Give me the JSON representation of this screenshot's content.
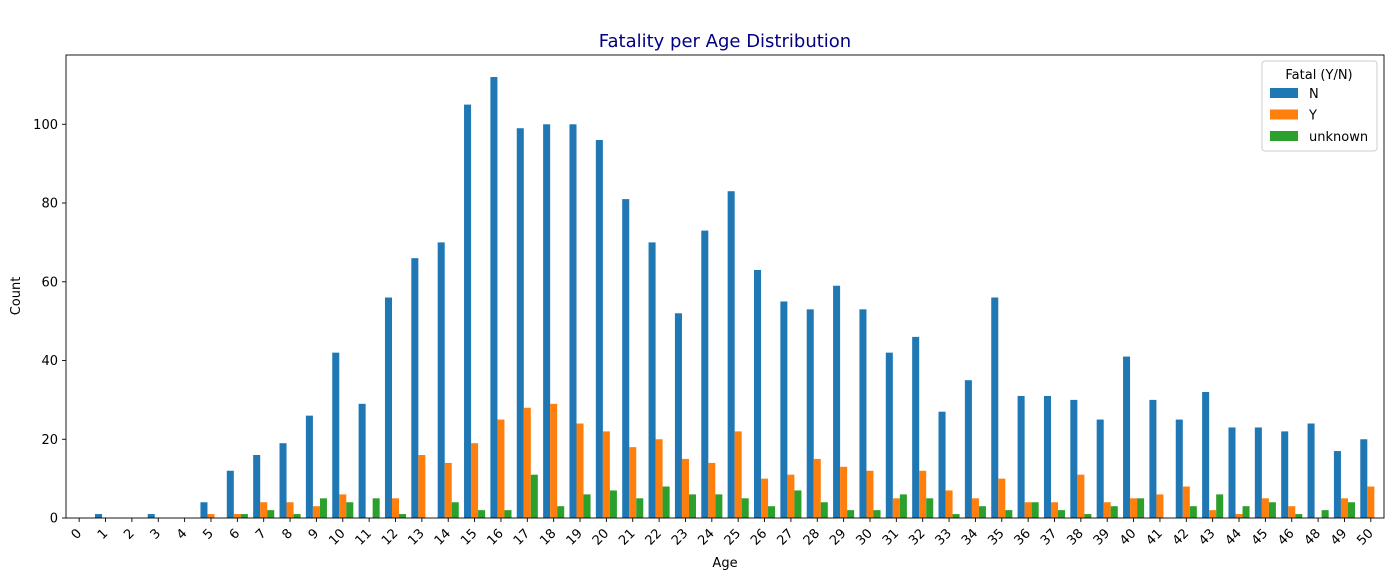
{
  "chart_data": {
    "type": "bar",
    "title": "Fatality per Age Distribution",
    "title_color": "#000080",
    "xlabel": "Age",
    "ylabel": "Count",
    "ylim": [
      0,
      117.6
    ],
    "yticks": [
      0,
      20,
      40,
      60,
      80,
      100
    ],
    "categories": [
      "0",
      "1",
      "2",
      "3",
      "4",
      "5",
      "6",
      "7",
      "8",
      "9",
      "10",
      "11",
      "12",
      "13",
      "14",
      "15",
      "16",
      "17",
      "18",
      "19",
      "20",
      "21",
      "22",
      "23",
      "24",
      "25",
      "26",
      "27",
      "28",
      "29",
      "30",
      "31",
      "32",
      "33",
      "34",
      "35",
      "36",
      "37",
      "38",
      "39",
      "40",
      "41",
      "42",
      "43",
      "44",
      "45",
      "46",
      "48",
      "49",
      "50"
    ],
    "legend": {
      "title": "Fatal (Y/N)",
      "position": "top-right"
    },
    "grid": false,
    "series": [
      {
        "name": "N",
        "color": "#1f77b4",
        "values": [
          0,
          1,
          0,
          1,
          0,
          4,
          12,
          16,
          19,
          26,
          42,
          29,
          56,
          66,
          70,
          105,
          112,
          99,
          100,
          100,
          96,
          81,
          70,
          52,
          73,
          83,
          63,
          55,
          53,
          59,
          53,
          42,
          46,
          27,
          35,
          56,
          31,
          31,
          30,
          25,
          41,
          30,
          25,
          32,
          23,
          23,
          22,
          24,
          17,
          20
        ]
      },
      {
        "name": "Y",
        "color": "#ff7f0e",
        "values": [
          0,
          0,
          0,
          0,
          0,
          1,
          1,
          4,
          4,
          3,
          6,
          0,
          5,
          16,
          14,
          19,
          25,
          28,
          29,
          24,
          22,
          18,
          20,
          15,
          14,
          22,
          10,
          11,
          15,
          13,
          12,
          5,
          12,
          7,
          5,
          10,
          4,
          4,
          11,
          4,
          5,
          6,
          8,
          2,
          1,
          5,
          3,
          0,
          5,
          8
        ]
      },
      {
        "name": "unknown",
        "color": "#2ca02c",
        "values": [
          0,
          0,
          0,
          0,
          0,
          0,
          1,
          2,
          1,
          5,
          4,
          5,
          1,
          0,
          4,
          2,
          2,
          11,
          3,
          6,
          7,
          5,
          8,
          6,
          6,
          5,
          3,
          7,
          4,
          2,
          2,
          6,
          5,
          1,
          3,
          2,
          4,
          2,
          1,
          3,
          5,
          0,
          3,
          6,
          3,
          4,
          1,
          2,
          4,
          0
        ]
      }
    ]
  }
}
